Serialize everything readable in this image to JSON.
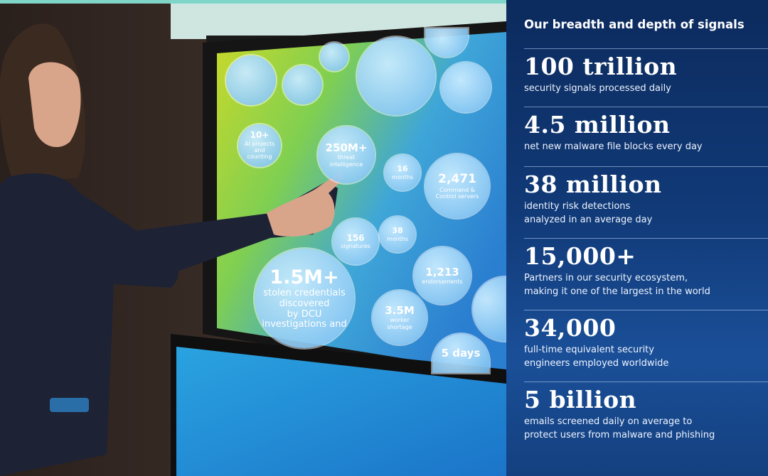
{
  "panel": {
    "title": "Our breadth and depth of signals",
    "stats": [
      {
        "value": "100 trillion",
        "lines": [
          "security signals processed daily"
        ]
      },
      {
        "value": "4.5 million",
        "lines": [
          "net new malware file blocks every day"
        ]
      },
      {
        "value": "38 million",
        "lines": [
          "identity risk detections",
          "analyzed in an average day"
        ]
      },
      {
        "value": "15,000+",
        "lines": [
          "Partners in our security ecosystem,",
          "making it one of the largest in the world"
        ]
      },
      {
        "value": "34,000",
        "lines": [
          "full-time equivalent security",
          "engineers employed worldwide"
        ]
      },
      {
        "value": "5 billion",
        "lines": [
          "emails screened daily on average to",
          "protect users from malware and phishing"
        ]
      }
    ]
  },
  "screen": {
    "bubbles": [
      {
        "value": "10+",
        "lines": [
          "AI projects and",
          "counting"
        ]
      },
      {
        "value": "250M+",
        "lines": [
          "threat intelligence"
        ]
      },
      {
        "value": "16",
        "lines": [
          "months"
        ]
      },
      {
        "value": "2,471",
        "lines": [
          "Command &",
          "Control servers"
        ]
      },
      {
        "value": "156",
        "lines": [
          "signatures"
        ]
      },
      {
        "value": "38",
        "lines": [
          "months"
        ]
      },
      {
        "value": "1,213",
        "lines": [
          "endorsements"
        ]
      },
      {
        "value": "1.5M+",
        "lines": [
          "stolen credentials discovered",
          "by DCU investigations and"
        ]
      },
      {
        "value": "3.5M",
        "lines": [
          "worker shortage"
        ]
      },
      {
        "value": "5 days",
        "lines": []
      }
    ]
  }
}
